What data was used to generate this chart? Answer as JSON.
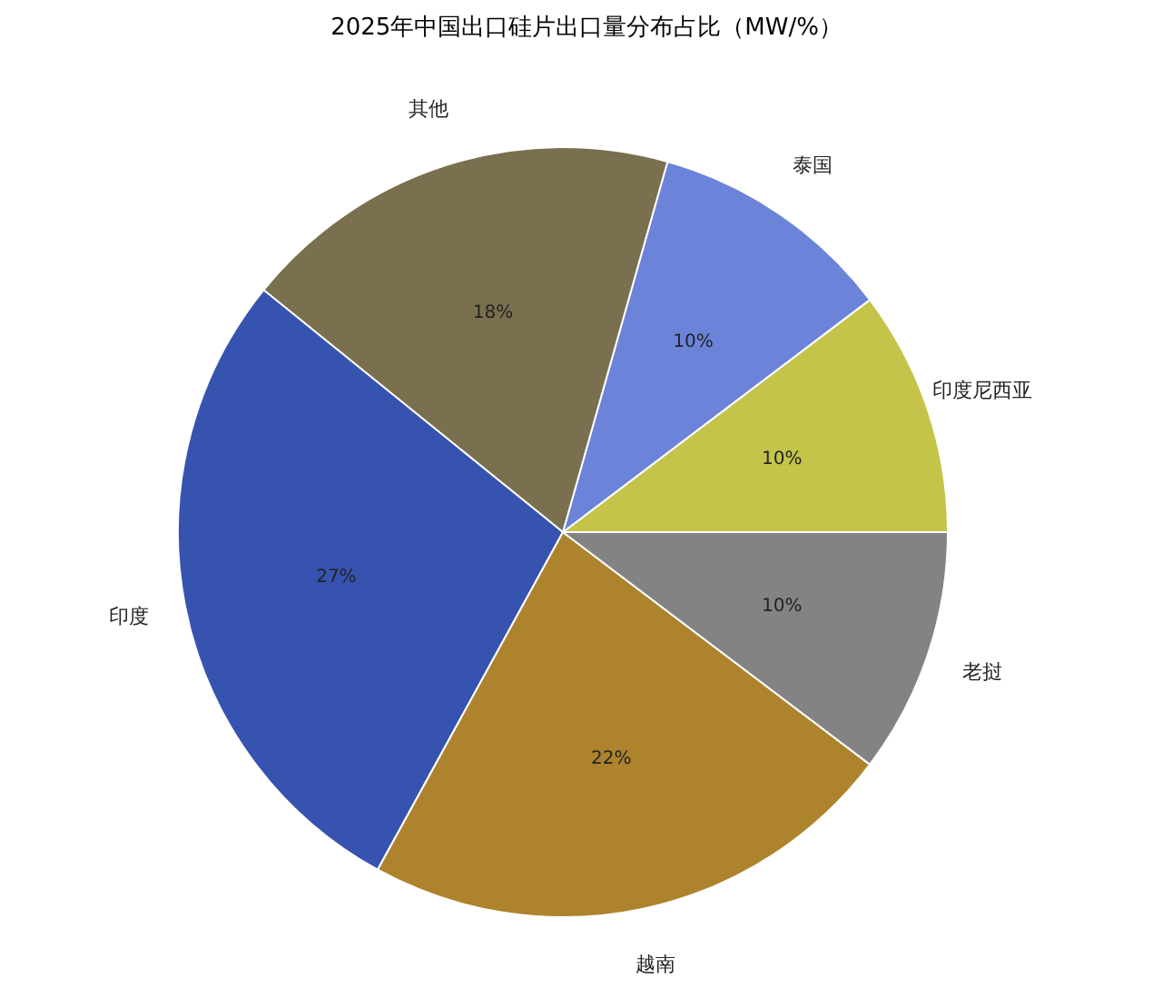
{
  "chart_data": {
    "type": "pie",
    "title": "2025年中国出口硅片出口量分布占比（MW/%）",
    "categories": [
      "印度尼西亚",
      "泰国",
      "其他",
      "印度",
      "越南",
      "老挝"
    ],
    "values": [
      10,
      10,
      18,
      27,
      22,
      10
    ],
    "value_labels": [
      "10%",
      "10%",
      "18%",
      "27%",
      "22%",
      "10%"
    ],
    "colors": [
      "#c4c44a",
      "#6b83d9",
      "#7a6f4e",
      "#3653b0",
      "#ad832e",
      "#838383"
    ],
    "legend": false
  }
}
